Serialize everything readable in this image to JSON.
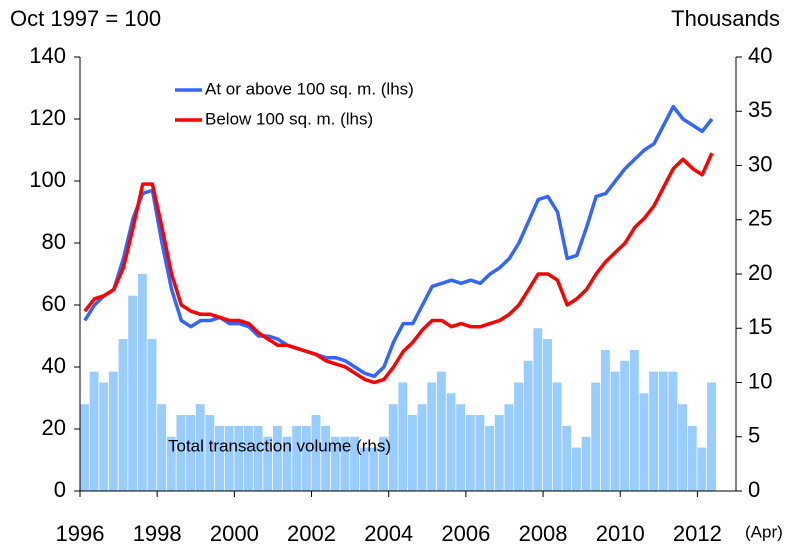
{
  "chart_data": {
    "type": "bar+line",
    "ylabel": "Oct 1997 = 100",
    "y2label": "Thousands",
    "annotations": [
      "Total transaction volume (rhs)",
      "(Apr)"
    ],
    "x": [
      1996,
      1996.25,
      1996.5,
      1996.75,
      1997,
      1997.25,
      1997.5,
      1997.75,
      1998,
      1998.25,
      1998.5,
      1998.75,
      1999,
      1999.25,
      1999.5,
      1999.75,
      2000,
      2000.25,
      2000.5,
      2000.75,
      2001,
      2001.25,
      2001.5,
      2001.75,
      2002,
      2002.25,
      2002.5,
      2002.75,
      2003,
      2003.25,
      2003.5,
      2003.75,
      2004,
      2004.25,
      2004.5,
      2004.75,
      2005,
      2005.25,
      2005.5,
      2005.75,
      2006,
      2006.25,
      2006.5,
      2006.75,
      2007,
      2007.25,
      2007.5,
      2007.75,
      2008,
      2008.25,
      2008.5,
      2008.75,
      2009,
      2009.25,
      2009.5,
      2009.75,
      2010,
      2010.25,
      2010.5,
      2010.75,
      2011,
      2011.25,
      2011.5,
      2011.75,
      2012,
      2012.25
    ],
    "xlim": [
      1996,
      2013
    ],
    "xticks": [
      1996,
      1998,
      2000,
      2002,
      2004,
      2006,
      2008,
      2010,
      2012
    ],
    "ylim": [
      0,
      140
    ],
    "yticks": [
      0,
      20,
      40,
      60,
      80,
      100,
      120,
      140
    ],
    "y2lim": [
      0,
      40
    ],
    "y2ticks": [
      0,
      5,
      10,
      15,
      20,
      25,
      30,
      35,
      40
    ],
    "series": [
      {
        "name": "Total transaction volume (rhs)",
        "kind": "bar",
        "axis": "y2",
        "color": "#99ccff",
        "values": [
          8,
          11,
          10,
          11,
          14,
          18,
          20,
          14,
          8,
          5,
          7,
          7,
          8,
          7,
          6,
          6,
          6,
          6,
          6,
          5,
          6,
          5,
          6,
          6,
          7,
          6,
          5,
          5,
          5,
          4,
          4,
          5,
          8,
          10,
          7,
          8,
          10,
          11,
          9,
          8,
          7,
          7,
          6,
          7,
          8,
          10,
          12,
          15,
          14,
          10,
          6,
          4,
          5,
          10,
          13,
          11,
          12,
          13,
          9,
          11,
          11,
          11,
          8,
          6,
          4,
          10
        ]
      },
      {
        "name": "At or above 100 sq. m. (lhs)",
        "kind": "line",
        "color": "#3366ff",
        "values": [
          55,
          60,
          63,
          65,
          75,
          88,
          96,
          97,
          80,
          65,
          55,
          53,
          55,
          55,
          56,
          54,
          54,
          53,
          50,
          50,
          49,
          47,
          46,
          45,
          44,
          43,
          43,
          42,
          40,
          38,
          37,
          40,
          48,
          54,
          54,
          60,
          66,
          67,
          68,
          67,
          68,
          67,
          70,
          72,
          75,
          80,
          87,
          94,
          95,
          90,
          75,
          76,
          85,
          95,
          96,
          100,
          104,
          107,
          110,
          112,
          118,
          124,
          120,
          118,
          116,
          120
        ]
      },
      {
        "name": "Below 100 sq. m. (lhs)",
        "kind": "line",
        "color": "#ff0000",
        "values": [
          58,
          62,
          63,
          65,
          72,
          85,
          99,
          99,
          85,
          70,
          60,
          58,
          57,
          57,
          56,
          55,
          55,
          54,
          51,
          49,
          47,
          47,
          46,
          45,
          44,
          42,
          41,
          40,
          38,
          36,
          35,
          36,
          40,
          45,
          48,
          52,
          55,
          55,
          53,
          54,
          53,
          53,
          54,
          55,
          57,
          60,
          65,
          70,
          70,
          68,
          60,
          62,
          65,
          70,
          74,
          77,
          80,
          85,
          88,
          92,
          98,
          104,
          107,
          104,
          102,
          109
        ]
      }
    ]
  }
}
